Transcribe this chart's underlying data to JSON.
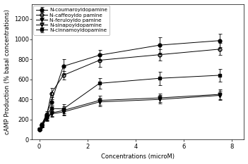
{
  "title": "",
  "xlabel": "Concentrations (microM)",
  "ylabel": "cAMP Production (% basal concentrations)",
  "xlim": [
    -0.3,
    8.5
  ],
  "ylim": [
    0,
    1350
  ],
  "yticks": [
    0,
    200,
    400,
    600,
    800,
    1000,
    1200
  ],
  "xticks": [
    0,
    2,
    4,
    6,
    8
  ],
  "series": [
    {
      "label": "N-coumaroyldopamine",
      "marker": "o",
      "markerfacecolor": "black",
      "markeredgecolor": "black",
      "linestyle": "-",
      "color": "black",
      "fillstyle": "full",
      "x": [
        0.0,
        0.1,
        0.3,
        0.5,
        1.0,
        2.5,
        5.0,
        7.5
      ],
      "y": [
        100,
        150,
        250,
        375,
        730,
        840,
        940,
        985
      ],
      "yerr": [
        10,
        20,
        35,
        45,
        70,
        55,
        75,
        65
      ]
    },
    {
      "label": "N-caffeoyldo pamine",
      "marker": "o",
      "markerfacecolor": "white",
      "markeredgecolor": "black",
      "linestyle": "-",
      "color": "black",
      "fillstyle": "none",
      "x": [
        0.0,
        0.1,
        0.3,
        0.5,
        1.0,
        2.5,
        5.0,
        7.5
      ],
      "y": [
        100,
        140,
        230,
        460,
        640,
        790,
        845,
        900
      ],
      "yerr": [
        10,
        15,
        30,
        55,
        45,
        65,
        55,
        60
      ]
    },
    {
      "label": "N-feruloyldo pamine",
      "marker": "v",
      "markerfacecolor": "black",
      "markeredgecolor": "black",
      "linestyle": "-",
      "color": "black",
      "fillstyle": "full",
      "x": [
        0.0,
        0.1,
        0.3,
        0.5,
        1.0,
        2.5,
        5.0,
        7.5
      ],
      "y": [
        100,
        135,
        215,
        265,
        290,
        390,
        415,
        450
      ],
      "yerr": [
        10,
        15,
        25,
        35,
        40,
        45,
        45,
        50
      ]
    },
    {
      "label": "N-sinapoyldopamine",
      "marker": "v",
      "markerfacecolor": "white",
      "markeredgecolor": "black",
      "linestyle": "-",
      "color": "black",
      "fillstyle": "none",
      "x": [
        0.0,
        0.1,
        0.3,
        0.5,
        1.0,
        2.5,
        5.0,
        7.5
      ],
      "y": [
        100,
        130,
        205,
        255,
        275,
        375,
        400,
        440
      ],
      "yerr": [
        10,
        12,
        22,
        30,
        38,
        42,
        42,
        45
      ]
    },
    {
      "label": "N-cinnamoyldopamine",
      "marker": "s",
      "markerfacecolor": "black",
      "markeredgecolor": "black",
      "linestyle": "-",
      "color": "black",
      "fillstyle": "full",
      "x": [
        0.0,
        0.1,
        0.3,
        0.5,
        1.0,
        2.5,
        5.0,
        7.5
      ],
      "y": [
        100,
        145,
        240,
        310,
        305,
        560,
        610,
        640
      ],
      "yerr": [
        10,
        15,
        28,
        32,
        45,
        55,
        65,
        60
      ]
    }
  ],
  "background_color": "#ffffff",
  "font_size": 6,
  "legend_font_size": 5.2
}
